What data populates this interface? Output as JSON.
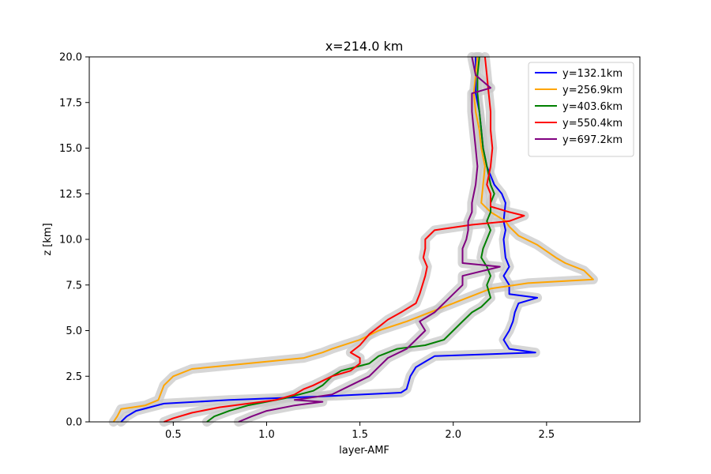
{
  "chart_data": {
    "type": "line",
    "title": "x=214.0 km",
    "xlabel": "layer-AMF",
    "ylabel": "z [km]",
    "xlim": [
      0.05,
      3.0
    ],
    "ylim": [
      0,
      20
    ],
    "xticks": [
      "0.5",
      "1.0",
      "1.5",
      "2.0",
      "2.5"
    ],
    "yticks": [
      "0.0",
      "2.5",
      "5.0",
      "7.5",
      "10.0",
      "12.5",
      "15.0",
      "17.5",
      "20.0"
    ],
    "grid": false,
    "legend_position": "top-right",
    "uncertainty_band": "gray shaded region around each series",
    "series": [
      {
        "name": "y=132.1km",
        "color": "#0000ff",
        "points": [
          [
            0.22,
            0
          ],
          [
            0.25,
            0.3
          ],
          [
            0.3,
            0.6
          ],
          [
            0.45,
            1.0
          ],
          [
            0.8,
            1.2
          ],
          [
            1.3,
            1.4
          ],
          [
            1.72,
            1.6
          ],
          [
            1.75,
            1.8
          ],
          [
            1.77,
            2.5
          ],
          [
            1.8,
            3.0
          ],
          [
            1.85,
            3.3
          ],
          [
            1.9,
            3.6
          ],
          [
            2.44,
            3.8
          ],
          [
            2.3,
            4.0
          ],
          [
            2.27,
            4.5
          ],
          [
            2.3,
            5.0
          ],
          [
            2.32,
            5.5
          ],
          [
            2.33,
            6.0
          ],
          [
            2.35,
            6.5
          ],
          [
            2.45,
            6.8
          ],
          [
            2.3,
            7.0
          ],
          [
            2.3,
            7.5
          ],
          [
            2.27,
            8.0
          ],
          [
            2.3,
            8.5
          ],
          [
            2.28,
            9.0
          ],
          [
            2.27,
            10.0
          ],
          [
            2.28,
            10.5
          ],
          [
            2.27,
            11.0
          ],
          [
            2.28,
            12.0
          ],
          [
            2.26,
            12.5
          ],
          [
            2.22,
            13.0
          ],
          [
            2.18,
            14.0
          ],
          [
            2.16,
            15.0
          ],
          [
            2.15,
            16.0
          ],
          [
            2.14,
            17.0
          ],
          [
            2.12,
            18.0
          ],
          [
            2.12,
            19.0
          ],
          [
            2.12,
            20.0
          ]
        ]
      },
      {
        "name": "y=256.9km",
        "color": "#ffa500",
        "points": [
          [
            0.18,
            0
          ],
          [
            0.2,
            0.3
          ],
          [
            0.22,
            0.7
          ],
          [
            0.35,
            0.9
          ],
          [
            0.42,
            1.2
          ],
          [
            0.45,
            2.0
          ],
          [
            0.5,
            2.5
          ],
          [
            0.6,
            2.9
          ],
          [
            0.8,
            3.1
          ],
          [
            1.2,
            3.5
          ],
          [
            1.3,
            3.8
          ],
          [
            1.35,
            4.0
          ],
          [
            1.5,
            4.5
          ],
          [
            1.6,
            5.0
          ],
          [
            1.75,
            5.5
          ],
          [
            2.0,
            6.5
          ],
          [
            2.2,
            7.3
          ],
          [
            2.4,
            7.6
          ],
          [
            2.75,
            7.8
          ],
          [
            2.7,
            8.3
          ],
          [
            2.6,
            8.7
          ],
          [
            2.55,
            9.0
          ],
          [
            2.45,
            9.7
          ],
          [
            2.35,
            10.2
          ],
          [
            2.3,
            10.7
          ],
          [
            2.28,
            11.0
          ],
          [
            2.2,
            11.5
          ],
          [
            2.15,
            12.0
          ],
          [
            2.16,
            13.0
          ],
          [
            2.17,
            14.0
          ],
          [
            2.15,
            15.0
          ],
          [
            2.14,
            16.0
          ],
          [
            2.12,
            17.0
          ],
          [
            2.11,
            18.0
          ],
          [
            2.12,
            19.0
          ],
          [
            2.13,
            20.0
          ]
        ]
      },
      {
        "name": "y=403.6km",
        "color": "#008000",
        "points": [
          [
            0.68,
            0
          ],
          [
            0.72,
            0.3
          ],
          [
            0.8,
            0.6
          ],
          [
            0.9,
            0.9
          ],
          [
            1.1,
            1.3
          ],
          [
            1.25,
            1.7
          ],
          [
            1.3,
            2.0
          ],
          [
            1.35,
            2.5
          ],
          [
            1.4,
            2.8
          ],
          [
            1.55,
            3.2
          ],
          [
            1.6,
            3.6
          ],
          [
            1.7,
            4.0
          ],
          [
            1.85,
            4.2
          ],
          [
            1.95,
            4.5
          ],
          [
            2.0,
            5.0
          ],
          [
            2.05,
            5.5
          ],
          [
            2.1,
            6.0
          ],
          [
            2.15,
            6.3
          ],
          [
            2.2,
            6.8
          ],
          [
            2.18,
            7.5
          ],
          [
            2.2,
            8.0
          ],
          [
            2.18,
            8.5
          ],
          [
            2.15,
            9.0
          ],
          [
            2.16,
            9.5
          ],
          [
            2.18,
            10.0
          ],
          [
            2.2,
            10.5
          ],
          [
            2.18,
            11.0
          ],
          [
            2.2,
            11.5
          ],
          [
            2.2,
            12.0
          ],
          [
            2.22,
            12.5
          ],
          [
            2.2,
            13.0
          ],
          [
            2.18,
            14.0
          ],
          [
            2.16,
            15.0
          ],
          [
            2.15,
            16.0
          ],
          [
            2.14,
            17.0
          ],
          [
            2.13,
            18.0
          ],
          [
            2.13,
            19.0
          ],
          [
            2.14,
            20.0
          ]
        ]
      },
      {
        "name": "y=550.4km",
        "color": "#ff0000",
        "points": [
          [
            0.45,
            0
          ],
          [
            0.5,
            0.2
          ],
          [
            0.6,
            0.5
          ],
          [
            0.75,
            0.8
          ],
          [
            0.9,
            1.0
          ],
          [
            1.05,
            1.2
          ],
          [
            1.15,
            1.5
          ],
          [
            1.2,
            1.8
          ],
          [
            1.25,
            2.0
          ],
          [
            1.35,
            2.5
          ],
          [
            1.45,
            2.8
          ],
          [
            1.5,
            3.2
          ],
          [
            1.5,
            3.5
          ],
          [
            1.45,
            3.8
          ],
          [
            1.5,
            4.2
          ],
          [
            1.55,
            4.8
          ],
          [
            1.6,
            5.2
          ],
          [
            1.65,
            5.6
          ],
          [
            1.72,
            6.0
          ],
          [
            1.8,
            6.5
          ],
          [
            1.82,
            7.0
          ],
          [
            1.85,
            8.0
          ],
          [
            1.86,
            8.5
          ],
          [
            1.84,
            9.0
          ],
          [
            1.85,
            9.5
          ],
          [
            1.85,
            10.0
          ],
          [
            1.9,
            10.5
          ],
          [
            2.1,
            10.8
          ],
          [
            2.3,
            11.0
          ],
          [
            2.38,
            11.3
          ],
          [
            2.3,
            11.5
          ],
          [
            2.2,
            11.8
          ],
          [
            2.2,
            12.5
          ],
          [
            2.18,
            13.0
          ],
          [
            2.2,
            14.0
          ],
          [
            2.21,
            15.0
          ],
          [
            2.2,
            16.0
          ],
          [
            2.2,
            17.0
          ],
          [
            2.19,
            18.0
          ],
          [
            2.18,
            19.0
          ],
          [
            2.17,
            20.0
          ]
        ]
      },
      {
        "name": "y=697.2km",
        "color": "#800080",
        "points": [
          [
            0.85,
            0
          ],
          [
            0.92,
            0.3
          ],
          [
            1.0,
            0.6
          ],
          [
            1.15,
            0.9
          ],
          [
            1.3,
            1.1
          ],
          [
            1.15,
            1.2
          ],
          [
            1.35,
            1.5
          ],
          [
            1.45,
            2.0
          ],
          [
            1.55,
            2.5
          ],
          [
            1.6,
            3.0
          ],
          [
            1.65,
            3.5
          ],
          [
            1.75,
            4.0
          ],
          [
            1.8,
            4.5
          ],
          [
            1.85,
            5.0
          ],
          [
            1.82,
            5.5
          ],
          [
            1.9,
            6.0
          ],
          [
            1.95,
            6.5
          ],
          [
            2.0,
            7.0
          ],
          [
            2.05,
            7.5
          ],
          [
            2.05,
            8.0
          ],
          [
            2.25,
            8.5
          ],
          [
            2.05,
            8.7
          ],
          [
            2.05,
            9.5
          ],
          [
            2.07,
            10.0
          ],
          [
            2.08,
            10.5
          ],
          [
            2.08,
            11.0
          ],
          [
            2.1,
            11.5
          ],
          [
            2.1,
            12.0
          ],
          [
            2.12,
            13.0
          ],
          [
            2.13,
            14.0
          ],
          [
            2.12,
            15.0
          ],
          [
            2.11,
            16.0
          ],
          [
            2.1,
            17.0
          ],
          [
            2.1,
            18.0
          ],
          [
            2.2,
            18.3
          ],
          [
            2.12,
            19.0
          ],
          [
            2.1,
            20.0
          ]
        ]
      }
    ]
  }
}
